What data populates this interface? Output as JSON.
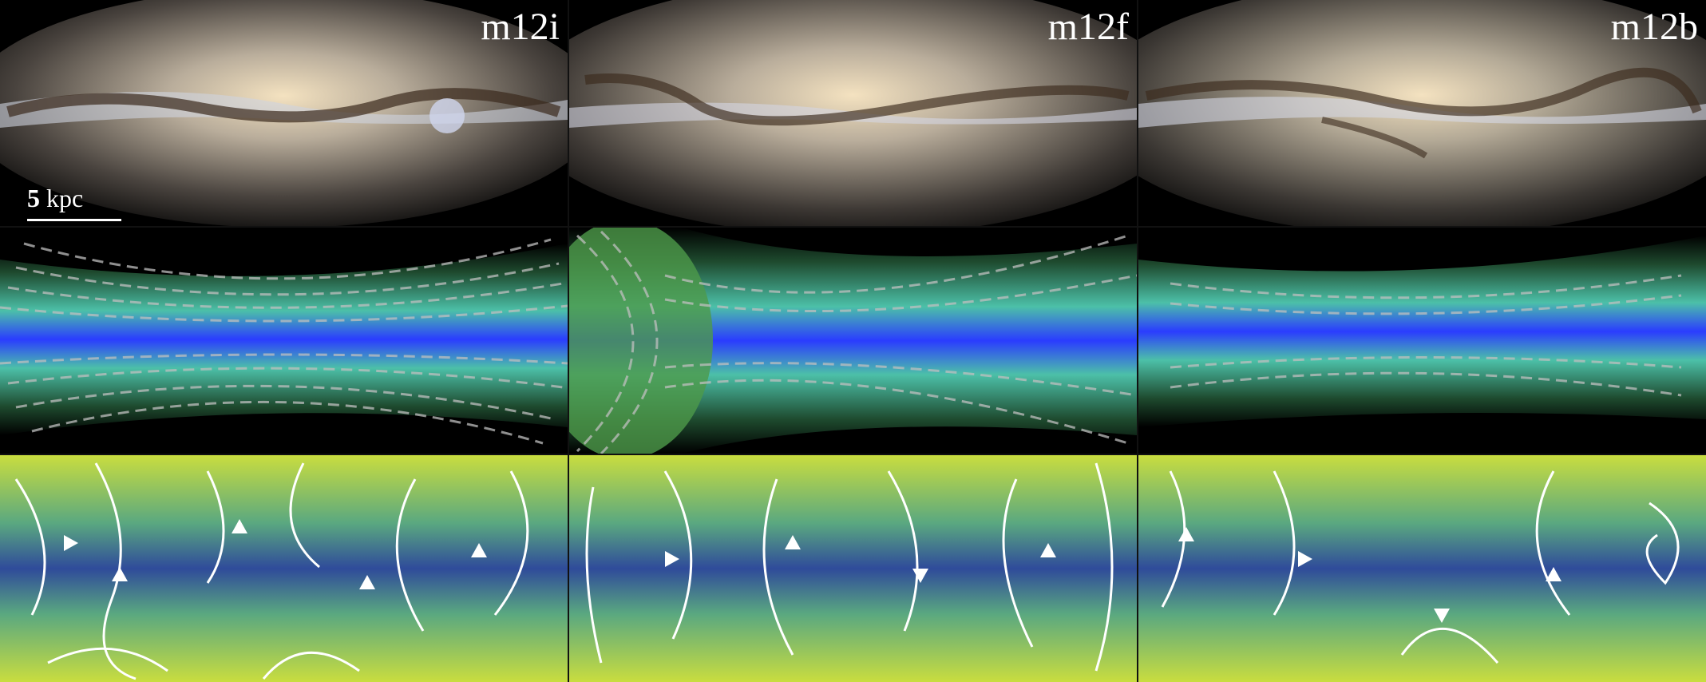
{
  "figure": {
    "columns": [
      {
        "label": "m12i"
      },
      {
        "label": "m12f"
      },
      {
        "label": "m12b"
      }
    ],
    "scalebar": {
      "value": "5",
      "unit": "kpc"
    },
    "rows": [
      "stellar-light",
      "gas-density-field-lines",
      "velocity-streamlines"
    ],
    "colors": {
      "background": "#000000",
      "gas_blue": "#2a3cff",
      "gas_green": "#3fa060",
      "field_dash": "#bfbfbf",
      "stream_low": "#3b4fa0",
      "stream_high": "#d7e23b",
      "arrow": "#ffffff"
    }
  }
}
